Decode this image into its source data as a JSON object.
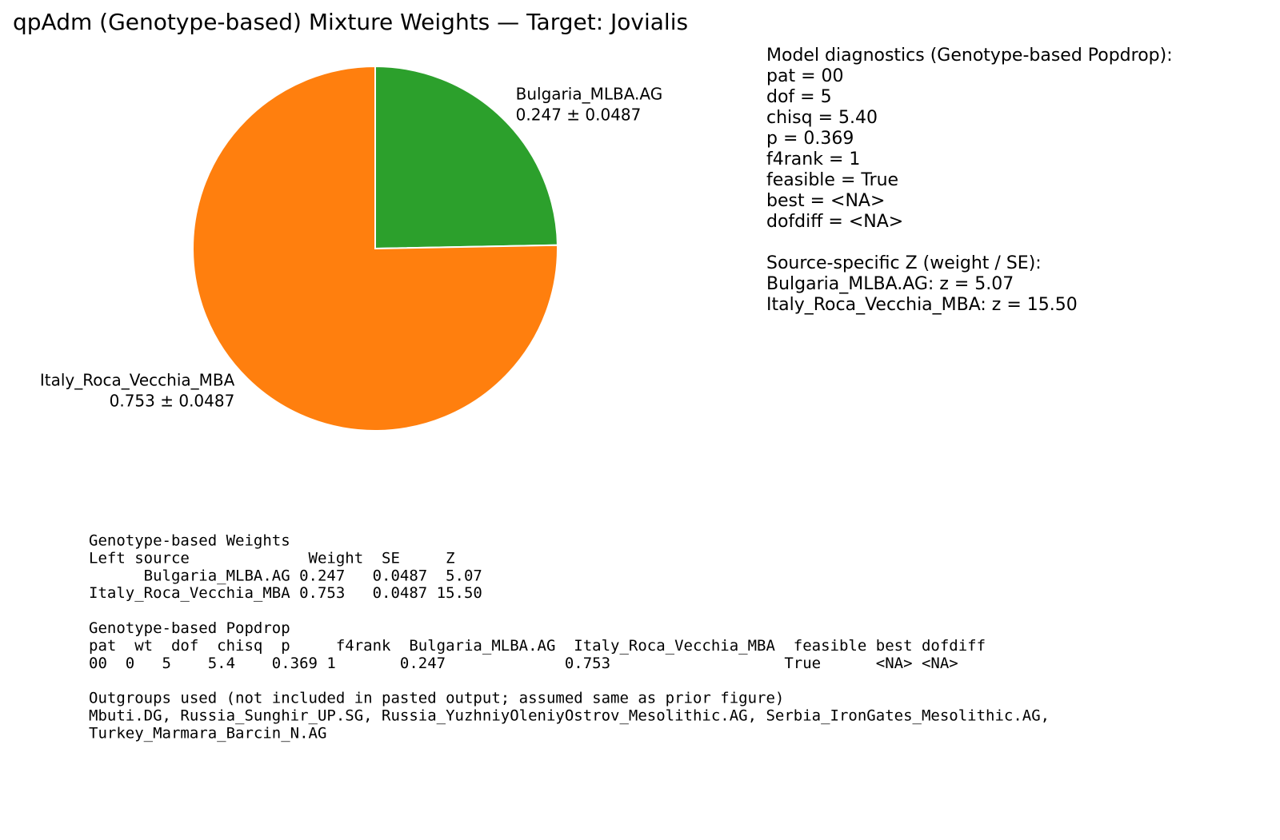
{
  "chart_data": {
    "type": "pie",
    "title": "qpAdm (Genotype-based) Mixture Weights — Target: Jovialis",
    "categories": [
      "Bulgaria_MLBA.AG",
      "Italy_Roca_Vecchia_MBA"
    ],
    "values": [
      0.247,
      0.753
    ],
    "value_labels": [
      "0.247 ± 0.0487",
      "0.753 ± 0.0487"
    ],
    "colors": [
      "#2ca02c",
      "#ff7f0e"
    ]
  },
  "diagnostics": {
    "title": "Model diagnostics (Genotype-based Popdrop):",
    "lines": [
      "pat = 00",
      "dof = 5",
      "chisq = 5.40",
      "p = 0.369",
      "f4rank = 1",
      "feasible = True",
      "best = <NA>",
      "dofdiff = <NA>"
    ]
  },
  "z_section": {
    "title": "Source-specific Z (weight / SE):",
    "lines": [
      "Bulgaria_MLBA.AG: z = 5.07",
      "Italy_Roca_Vecchia_MBA: z = 15.50"
    ]
  },
  "summary": [
    {
      "title": "Genotype-based Weights",
      "lines": [
        "Left source             Weight  SE     Z",
        "      Bulgaria_MLBA.AG 0.247   0.0487  5.07",
        "Italy_Roca_Vecchia_MBA 0.753   0.0487 15.50"
      ]
    },
    {
      "title": "Genotype-based Popdrop",
      "lines": [
        "pat  wt  dof  chisq  p     f4rank  Bulgaria_MLBA.AG  Italy_Roca_Vecchia_MBA  feasible best dofdiff",
        "00  0   5    5.4    0.369 1       0.247             0.753                   True      <NA> <NA>"
      ]
    },
    {
      "title": "Outgroups used (not included in pasted output; assumed same as prior figure)",
      "lines": [
        "Mbuti.DG, Russia_Sunghir_UP.SG, Russia_YuzhniyOleniyOstrov_Mesolithic.AG, Serbia_IronGates_Mesolithic.AG,",
        "Turkey_Marmara_Barcin_N.AG"
      ]
    }
  ]
}
